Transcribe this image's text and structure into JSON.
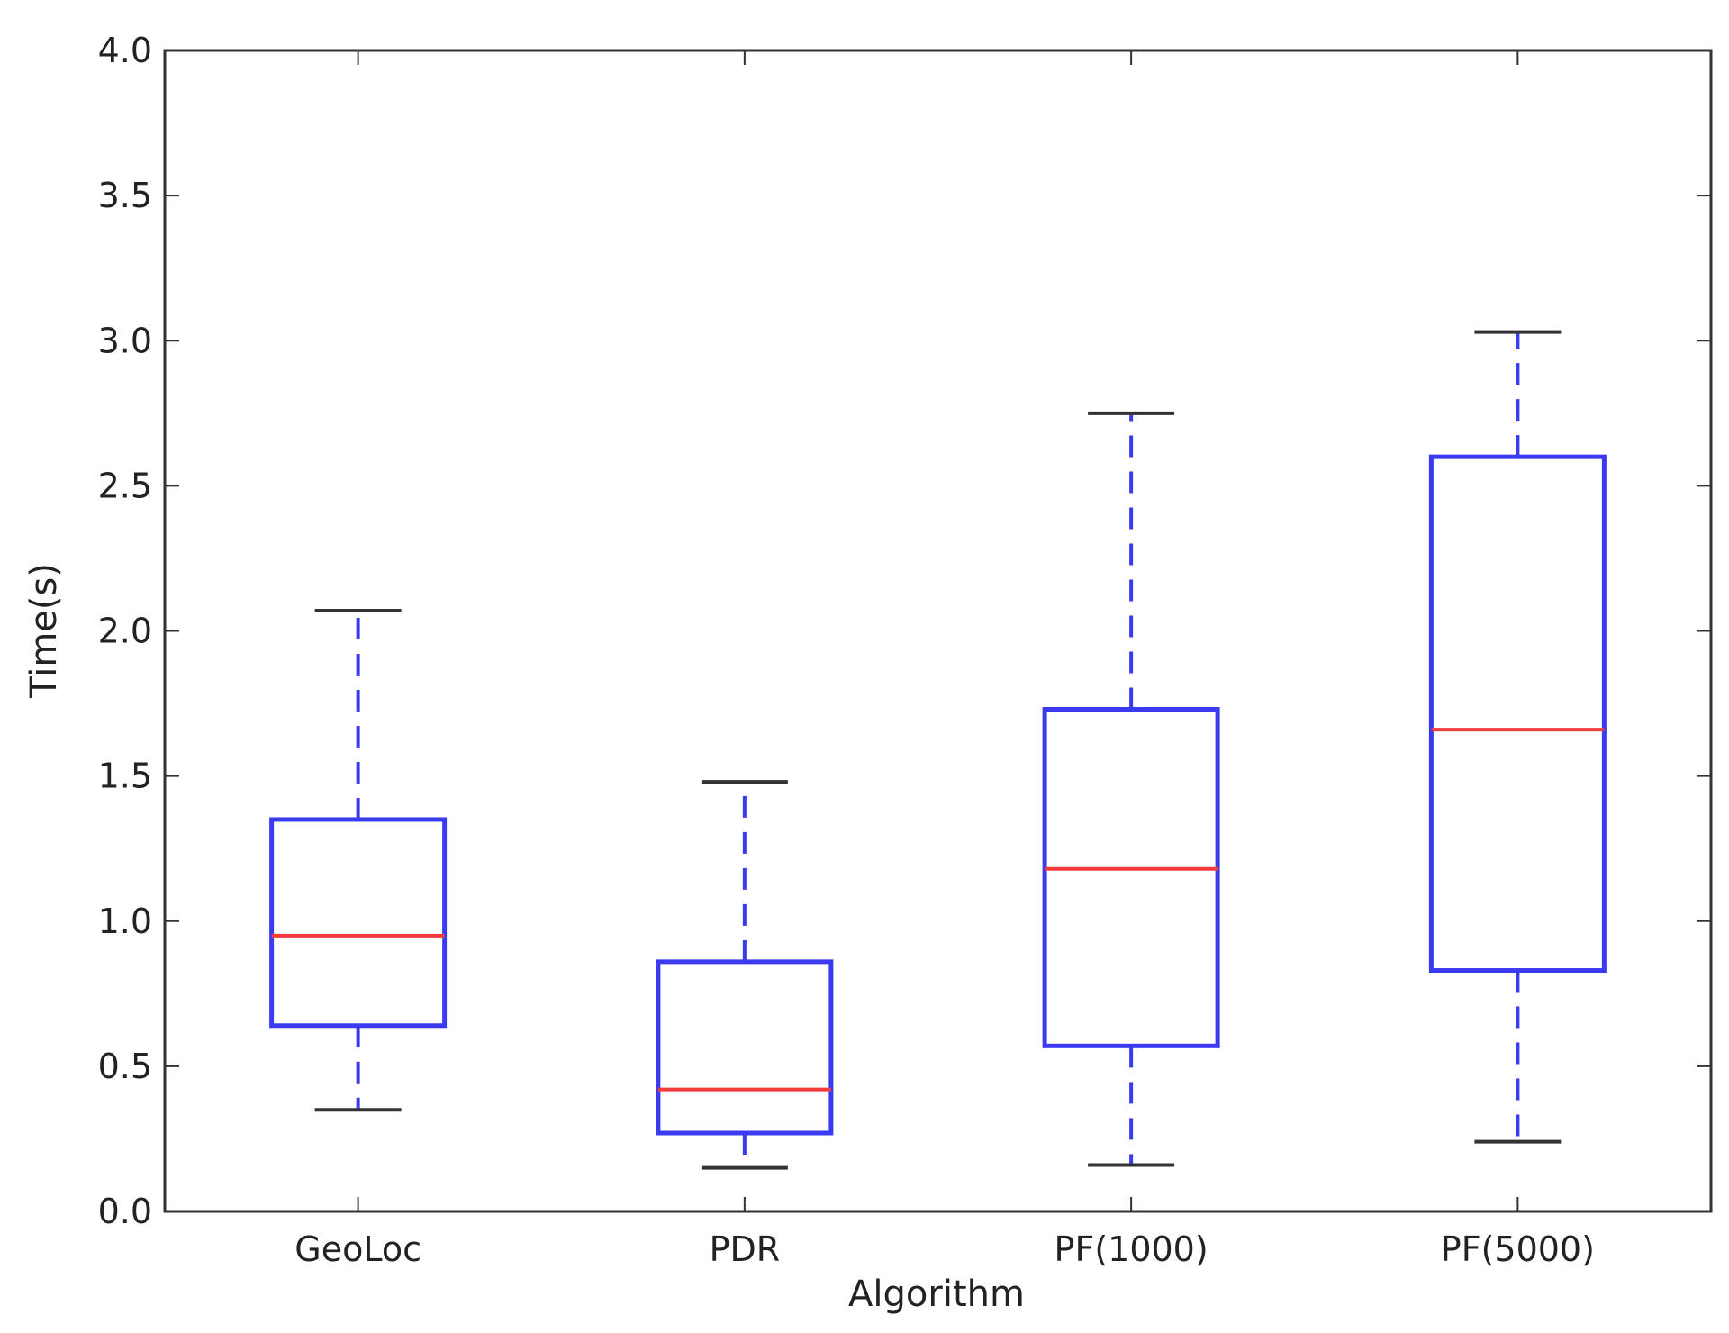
{
  "chart_data": {
    "type": "boxplot",
    "title": "",
    "xlabel": "Algorithm",
    "ylabel": "Time(s)",
    "ylim": [
      0.0,
      4.0
    ],
    "yticks": [
      "0.0",
      "0.5",
      "1.0",
      "1.5",
      "2.0",
      "2.5",
      "3.0",
      "3.5",
      "4.0"
    ],
    "categories": [
      "GeoLoc",
      "PDR",
      "PF(1000)",
      "PF(5000)"
    ],
    "boxes": [
      {
        "name": "GeoLoc",
        "whislo": 0.35,
        "q1": 0.64,
        "median": 0.95,
        "q3": 1.35,
        "whishi": 2.07
      },
      {
        "name": "PDR",
        "whislo": 0.15,
        "q1": 0.27,
        "median": 0.42,
        "q3": 0.86,
        "whishi": 1.48
      },
      {
        "name": "PF(1000)",
        "whislo": 0.16,
        "q1": 0.57,
        "median": 1.18,
        "q3": 1.73,
        "whishi": 2.75
      },
      {
        "name": "PF(5000)",
        "whislo": 0.24,
        "q1": 0.83,
        "median": 1.66,
        "q3": 2.6,
        "whishi": 3.03
      }
    ],
    "grid": false,
    "colors": {
      "box": "#3a3af0",
      "median": "#f03c3c",
      "whisker": "#3a3af0",
      "cap": "#333333",
      "axis": "#333333"
    }
  }
}
